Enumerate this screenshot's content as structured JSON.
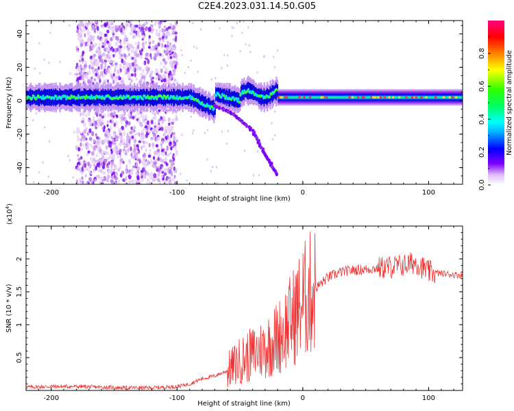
{
  "title": "C2E4.2023.031.14.50.G05",
  "chart_data": [
    {
      "type": "heatmap",
      "xlabel": "Height of straight line (km)",
      "ylabel": "Frequency (Hz)",
      "xlim": [
        -220,
        127
      ],
      "ylim": [
        -50,
        48
      ],
      "xticks": [
        -200,
        -100,
        0,
        100
      ],
      "yticks": [
        -40,
        -20,
        0,
        20,
        40
      ],
      "colorbar": {
        "label": "Normalized spectral amplitude",
        "range": [
          0,
          1
        ],
        "ticks": [
          0.0,
          0.2,
          0.4,
          0.6,
          0.8
        ],
        "colormap": [
          "#ffffff",
          "#d0a0f0",
          "#8000ff",
          "#0000ff",
          "#00ffff",
          "#00ff00",
          "#ffff00",
          "#ff8000",
          "#ff0000",
          "#ff0080"
        ]
      },
      "features": {
        "carrier_band_center_hz": 2,
        "scatter_region_km": [
          -180,
          -100
        ],
        "descending_branch": {
          "x": [
            -70,
            -55,
            -40,
            -30,
            -20
          ],
          "y": [
            -3,
            -8,
            -18,
            -32,
            -45
          ]
        },
        "steady_region_km": [
          -20,
          127
        ]
      }
    },
    {
      "type": "line",
      "xlabel": "Height of straight line (km)",
      "ylabel": "SNR (10 * v/v)",
      "scale_label": "(x10",
      "scale_exp": "4",
      "scale_close": ")",
      "xlim": [
        -220,
        127
      ],
      "ylim": [
        0,
        2.5
      ],
      "xticks": [
        -200,
        -100,
        0,
        100
      ],
      "yticks": [
        0.5,
        1.0,
        1.5,
        2.0
      ],
      "series": [
        {
          "color": "#ee3333",
          "x": [
            -220,
            -200,
            -180,
            -160,
            -140,
            -120,
            -100,
            -90,
            -80,
            -70,
            -60,
            -50,
            -40,
            -30,
            -20,
            -10,
            0,
            10,
            20,
            30,
            40,
            50,
            60,
            70,
            80,
            90,
            100,
            110,
            120,
            127
          ],
          "y": [
            0.05,
            0.06,
            0.06,
            0.05,
            0.04,
            0.04,
            0.06,
            0.1,
            0.18,
            0.22,
            0.3,
            0.45,
            0.55,
            0.65,
            0.8,
            1.05,
            1.35,
            1.55,
            1.72,
            1.8,
            1.83,
            1.84,
            1.86,
            1.88,
            1.9,
            1.95,
            1.8,
            1.78,
            1.76,
            1.75
          ]
        }
      ]
    }
  ]
}
